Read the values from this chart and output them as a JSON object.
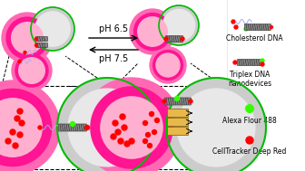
{
  "bg_color": "#ffffff",
  "pink_color": "#FF1493",
  "pink_light": "#FF69B4",
  "pink_inner": "#FFB0D0",
  "gray_color": "#CCCCCC",
  "gray_inner": "#E8E8E8",
  "green_outline": "#00BB00",
  "red_dot": "#FF0000",
  "green_dot": "#33FF00",
  "blue_wave": "#AAAAEE",
  "dna_face": "#888888",
  "dna_edge": "#444444",
  "gold_face": "#E8B84B",
  "gold_edge": "#8B6914",
  "ph65": "pH 6.5",
  "ph75": "pH 7.5",
  "leg1": "Cholesterol DNA",
  "leg2": "Triplex DNA\nnanodevices",
  "leg3": "Alexa Flour 488",
  "leg4": "CellTracker Deep Red",
  "font_ph": 7,
  "font_leg": 5.5
}
